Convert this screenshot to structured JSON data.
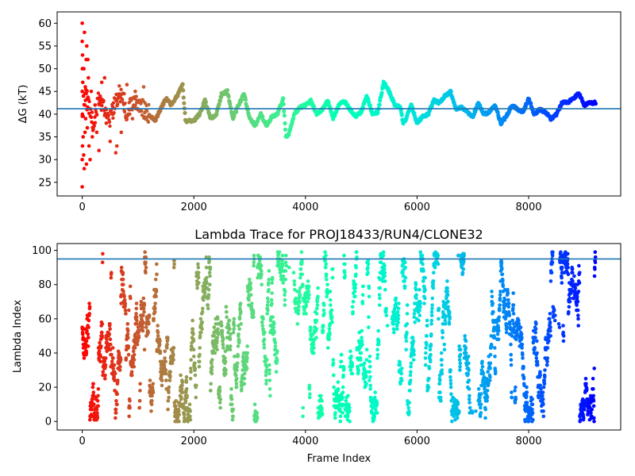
{
  "chart_data": [
    {
      "type": "scatter",
      "title": "",
      "xlabel": "",
      "ylabel": "ΔG (kT)",
      "xlim": [
        -450,
        9650
      ],
      "ylim": [
        22,
        62.5
      ],
      "xticks": [
        0,
        2000,
        4000,
        6000,
        8000
      ],
      "yticks": [
        25,
        30,
        35,
        40,
        45,
        50,
        55,
        60
      ],
      "reference_line": {
        "y": 41.2,
        "color": "#1f77b4"
      },
      "color_by": "frame index (rainbow colormap, red at frame 0 to violet at frame ~9200)",
      "frame_count": 9200,
      "segments": [
        {
          "x_start": 0,
          "x_end": 120,
          "y_min": 24,
          "y_max": 60,
          "note": "widely scattered early points"
        },
        {
          "x_start": 120,
          "x_end": 700,
          "y_min": 30,
          "y_max": 49
        },
        {
          "x_start": 700,
          "x_end": 1200,
          "y_min": 38,
          "y_max": 46.5
        },
        {
          "x_start": 1200,
          "x_end": 9200,
          "y_min": 34.8,
          "y_max": 47.3,
          "note": "near-continuous trace around 41"
        }
      ],
      "trace_points": [
        [
          0,
          40
        ],
        [
          60,
          45
        ],
        [
          120,
          42
        ],
        [
          200,
          38
        ],
        [
          300,
          44
        ],
        [
          400,
          41
        ],
        [
          500,
          39
        ],
        [
          600,
          43
        ],
        [
          700,
          45
        ],
        [
          800,
          40
        ],
        [
          900,
          43
        ],
        [
          1000,
          42
        ],
        [
          1100,
          41
        ],
        [
          1200,
          40
        ],
        [
          1300,
          38.5
        ],
        [
          1400,
          41
        ],
        [
          1500,
          43.5
        ],
        [
          1600,
          42
        ],
        [
          1700,
          44
        ],
        [
          1800,
          46.5
        ],
        [
          1850,
          38.5
        ],
        [
          2000,
          38.5
        ],
        [
          2100,
          40
        ],
        [
          2200,
          43
        ],
        [
          2300,
          39
        ],
        [
          2400,
          40
        ],
        [
          2500,
          44.5
        ],
        [
          2600,
          45
        ],
        [
          2700,
          39
        ],
        [
          2800,
          42
        ],
        [
          2900,
          44.5
        ],
        [
          3000,
          39
        ],
        [
          3100,
          37.5
        ],
        [
          3200,
          40
        ],
        [
          3300,
          37.5
        ],
        [
          3400,
          39.5
        ],
        [
          3500,
          40
        ],
        [
          3600,
          43.5
        ],
        [
          3650,
          35
        ],
        [
          3700,
          35.5
        ],
        [
          3800,
          40
        ],
        [
          3900,
          41.5
        ],
        [
          4000,
          42
        ],
        [
          4100,
          43
        ],
        [
          4200,
          40
        ],
        [
          4300,
          41
        ],
        [
          4400,
          43
        ],
        [
          4500,
          39
        ],
        [
          4600,
          42
        ],
        [
          4700,
          43
        ],
        [
          4800,
          41
        ],
        [
          4900,
          39.5
        ],
        [
          5000,
          40.5
        ],
        [
          5100,
          44
        ],
        [
          5200,
          40
        ],
        [
          5300,
          40.5
        ],
        [
          5400,
          47
        ],
        [
          5500,
          45
        ],
        [
          5600,
          42
        ],
        [
          5700,
          41.5
        ],
        [
          5750,
          38
        ],
        [
          5800,
          39
        ],
        [
          5900,
          42
        ],
        [
          6000,
          38
        ],
        [
          6100,
          39.5
        ],
        [
          6200,
          40
        ],
        [
          6300,
          43
        ],
        [
          6400,
          42.5
        ],
        [
          6500,
          44
        ],
        [
          6600,
          45
        ],
        [
          6700,
          41
        ],
        [
          6800,
          41.5
        ],
        [
          6900,
          40.5
        ],
        [
          7000,
          39.5
        ],
        [
          7100,
          42.5
        ],
        [
          7200,
          40
        ],
        [
          7300,
          40.5
        ],
        [
          7400,
          42
        ],
        [
          7500,
          38
        ],
        [
          7600,
          39.5
        ],
        [
          7700,
          42
        ],
        [
          7800,
          41
        ],
        [
          7900,
          40.5
        ],
        [
          8000,
          43.5
        ],
        [
          8100,
          40
        ],
        [
          8200,
          41
        ],
        [
          8300,
          40.5
        ],
        [
          8400,
          39
        ],
        [
          8500,
          40
        ],
        [
          8600,
          42.5
        ],
        [
          8700,
          42.5
        ],
        [
          8800,
          43.5
        ],
        [
          8900,
          44.5
        ],
        [
          9000,
          42
        ],
        [
          9100,
          42.5
        ],
        [
          9200,
          42.5
        ]
      ],
      "early_scatter_points": [
        [
          0,
          60
        ],
        [
          0,
          56
        ],
        [
          5,
          53
        ],
        [
          3,
          50
        ],
        [
          0,
          45
        ],
        [
          2,
          40
        ],
        [
          0,
          30
        ],
        [
          0,
          24
        ],
        [
          4,
          33
        ],
        [
          10,
          47
        ],
        [
          15,
          35
        ],
        [
          20,
          44
        ],
        [
          25,
          31
        ],
        [
          30,
          50
        ],
        [
          35,
          28
        ],
        [
          40,
          58
        ],
        [
          45,
          42
        ],
        [
          50,
          36
        ],
        [
          55,
          46
        ],
        [
          60,
          39
        ],
        [
          70,
          52
        ],
        [
          75,
          29
        ],
        [
          80,
          55
        ],
        [
          85,
          41
        ],
        [
          90,
          37
        ],
        [
          100,
          52
        ],
        [
          110,
          48
        ],
        [
          120,
          33
        ],
        [
          140,
          30
        ],
        [
          160,
          45
        ],
        [
          180,
          35
        ],
        [
          200,
          38
        ],
        [
          230,
          42
        ],
        [
          260,
          36
        ],
        [
          300,
          32
        ],
        [
          320,
          44
        ],
        [
          350,
          47
        ],
        [
          400,
          48
        ],
        [
          430,
          38
        ],
        [
          500,
          34
        ],
        [
          550,
          40
        ],
        [
          600,
          31.5
        ],
        [
          620,
          33
        ],
        [
          650,
          44
        ],
        [
          700,
          36
        ],
        [
          750,
          44.5
        ],
        [
          800,
          46.5
        ],
        [
          850,
          40
        ],
        [
          900,
          39
        ],
        [
          950,
          45
        ],
        [
          1000,
          41
        ],
        [
          1050,
          43
        ],
        [
          1100,
          46
        ]
      ]
    },
    {
      "type": "scatter",
      "title": "Lambda Trace for PROJ18433/RUN4/CLONE32",
      "xlabel": "Frame Index",
      "ylabel": "Lambda Index",
      "xlim": [
        -450,
        9650
      ],
      "ylim": [
        -5,
        104
      ],
      "xticks": [
        0,
        2000,
        4000,
        6000,
        8000
      ],
      "yticks": [
        0,
        20,
        40,
        60,
        80,
        100
      ],
      "reference_line": {
        "y": 95,
        "color": "#1f77b4"
      },
      "color_by": "frame index (rainbow colormap, red at frame 0 to violet at frame ~9200)",
      "frame_count": 9200,
      "lambda_range": [
        0,
        99
      ],
      "sparse_frame_intervals": [
        [
          3650,
          3800
        ],
        [
          5450,
          5550
        ],
        [
          6950,
          7100
        ],
        [
          8450,
          8550
        ]
      ]
    }
  ]
}
